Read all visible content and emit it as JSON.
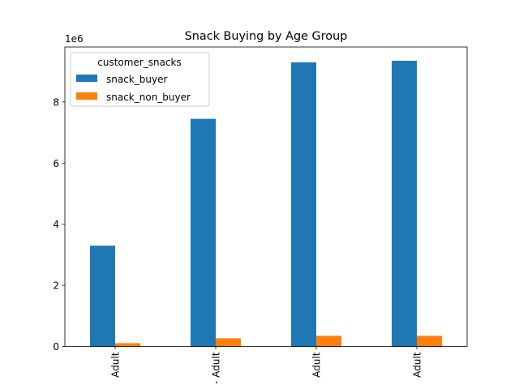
{
  "chart_data": {
    "type": "bar",
    "title": "Snack Buying by Age Group",
    "xlabel": "",
    "ylabel": "",
    "offset_label": "1e6",
    "categories": [
      "Adult",
      "Adult",
      "Adult",
      "Adult"
    ],
    "category_fragments": [
      "",
      "- Adult",
      "",
      ""
    ],
    "series": [
      {
        "name": "snack_buyer",
        "values": [
          3.3,
          7.45,
          9.3,
          9.35
        ],
        "color": "#1f77b4"
      },
      {
        "name": "snack_non_buyer",
        "values": [
          0.11,
          0.27,
          0.35,
          0.35
        ],
        "color": "#ff7f0e"
      }
    ],
    "ylim": [
      0,
      9.8
    ],
    "yticks": [
      0,
      2,
      4,
      6,
      8
    ],
    "ytick_labels": [
      "0",
      "2",
      "4",
      "6",
      "8"
    ],
    "grid": false,
    "legend": {
      "title": "customer_snacks",
      "placement": "top-left"
    }
  }
}
